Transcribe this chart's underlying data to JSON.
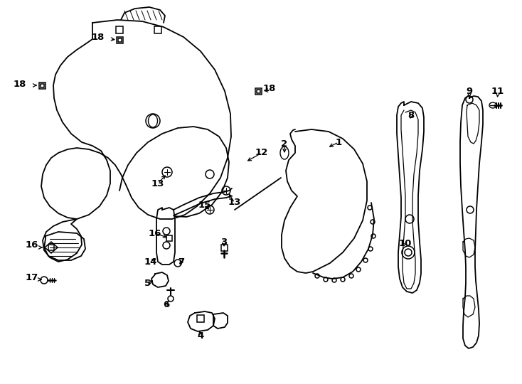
{
  "bg_color": "#ffffff",
  "line_color": "#000000",
  "figsize": [
    7.34,
    5.4
  ],
  "dpi": 100,
  "lw": 1.3
}
